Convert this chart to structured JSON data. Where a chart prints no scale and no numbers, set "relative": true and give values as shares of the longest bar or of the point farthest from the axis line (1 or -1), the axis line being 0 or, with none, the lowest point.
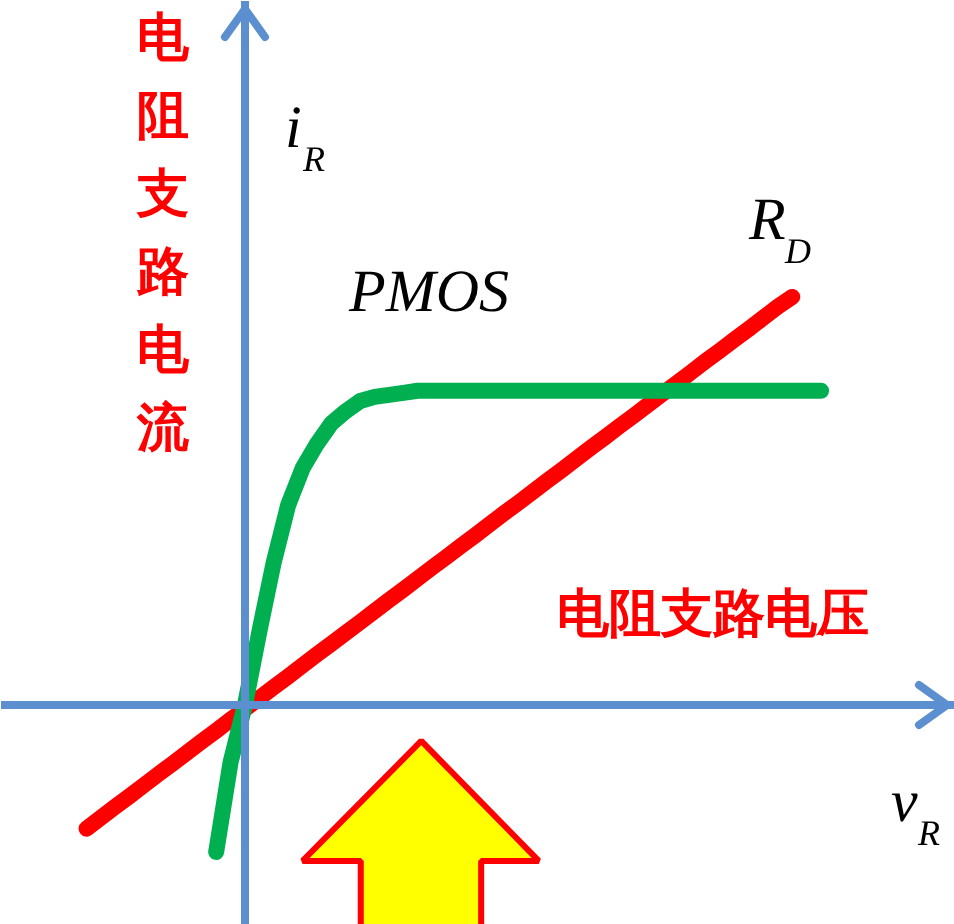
{
  "chart_data": {
    "type": "line",
    "relative": true,
    "ylabel": "电阻支路电流",
    "xlabel": "电阻支路电压",
    "annotations": [
      "i$_{R}$",
      "v$_{R}$"
    ],
    "ref_lines": [
      {
        "axis": "y",
        "value": 0,
        "color": "#5b8fd0"
      }
    ],
    "categories": [
      null,
      null,
      null,
      null,
      null,
      null,
      null,
      null,
      null,
      null,
      null,
      null,
      null,
      null,
      null,
      null,
      null,
      null,
      null,
      null,
      null,
      null,
      null,
      null,
      null,
      null,
      null,
      null,
      null,
      null,
      null,
      null,
      null,
      null,
      null,
      null,
      null,
      null,
      null,
      null,
      null,
      null,
      null,
      null,
      null,
      null,
      null,
      null,
      null,
      null,
      null,
      null
    ],
    "series": [
      {
        "name": "R$_{D}$",
        "color": "#ff0000",
        "values": [
          -0.303,
          -0.276,
          -0.249,
          -0.223,
          -0.196,
          -0.169,
          -0.143,
          -0.116,
          -0.089,
          -0.063,
          -0.036,
          -0.01,
          0.017,
          0.044,
          0.07,
          0.097,
          0.124,
          0.15,
          0.177,
          0.203,
          0.23,
          0.257,
          0.283,
          0.31,
          0.337,
          0.363,
          0.39,
          0.416,
          0.443,
          0.47,
          0.496,
          0.523,
          0.55,
          0.576,
          0.603,
          0.63,
          0.656,
          0.683,
          0.709,
          0.736,
          0.763,
          0.789,
          0.816,
          0.843,
          0.869,
          0.896,
          0.922,
          0.949,
          0.976,
          1.0,
          null,
          null
        ]
      },
      {
        "name": "PMOS",
        "color": "#00b050",
        "values": [
          null,
          null,
          null,
          null,
          null,
          null,
          null,
          null,
          null,
          -0.36,
          -0.14,
          0,
          0.18,
          0.35,
          0.49,
          0.58,
          0.64,
          0.69,
          0.72,
          0.745,
          0.755,
          0.76,
          0.765,
          0.77,
          0.77,
          0.77,
          0.77,
          0.77,
          0.77,
          0.77,
          0.77,
          0.77,
          0.77,
          0.77,
          0.77,
          0.77,
          0.77,
          0.77,
          0.77,
          0.77,
          0.77,
          0.77,
          0.77,
          0.77,
          0.77,
          0.77,
          0.77,
          0.77,
          0.77,
          0.77,
          0.77,
          0.77
        ]
      }
    ]
  }
}
